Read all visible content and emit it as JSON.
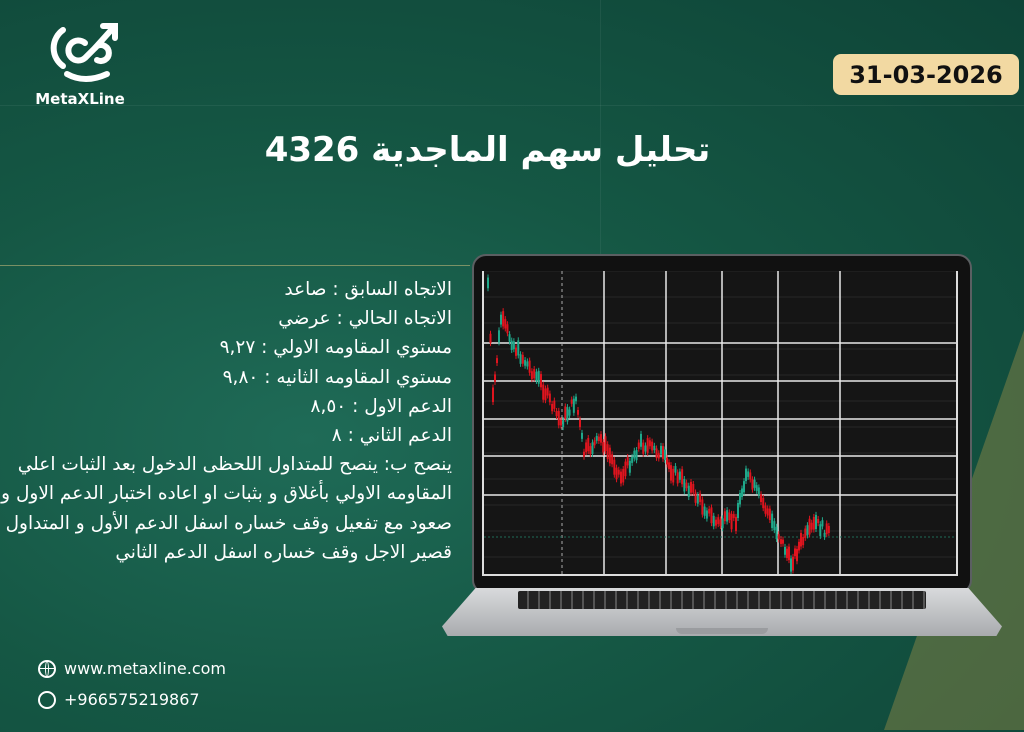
{
  "brand": {
    "name": "MetaXLine"
  },
  "date": "31-03-2026",
  "title": "تحليل سهم الماجدية 4326",
  "info_lines": [
    "الاتجاه السابق : صاعد",
    "الاتجاه الحالي : عرضي",
    "مستوي المقاومه الاولي : ٩,٢٧",
    "مستوي المقاومه الثانيه : ٩,٨٠",
    "الدعم الاول :  ٨,٥٠",
    "الدعم الثاني : ٨",
    "ينصح ب: ينصح للمتداول اللحظى الدخول بعد الثبات اعلي المقاومه الاولي بأغلاق و بثبات او اعاده اختبار الدعم الاول و صعود مع تفعيل وقف خساره اسفل الدعم الأول و المتداول قصير الاجل وقف خساره اسفل الدعم الثاني"
  ],
  "footer": {
    "website": "www.metaxline.com",
    "phone": "+966575219867"
  },
  "colors": {
    "background": "#155744",
    "date_badge": "#f2d9a2",
    "candle_up": "#1fa88a",
    "candle_down": "#e0141e"
  },
  "icons": {
    "website": "globe-icon",
    "phone": "whatsapp-icon"
  }
}
